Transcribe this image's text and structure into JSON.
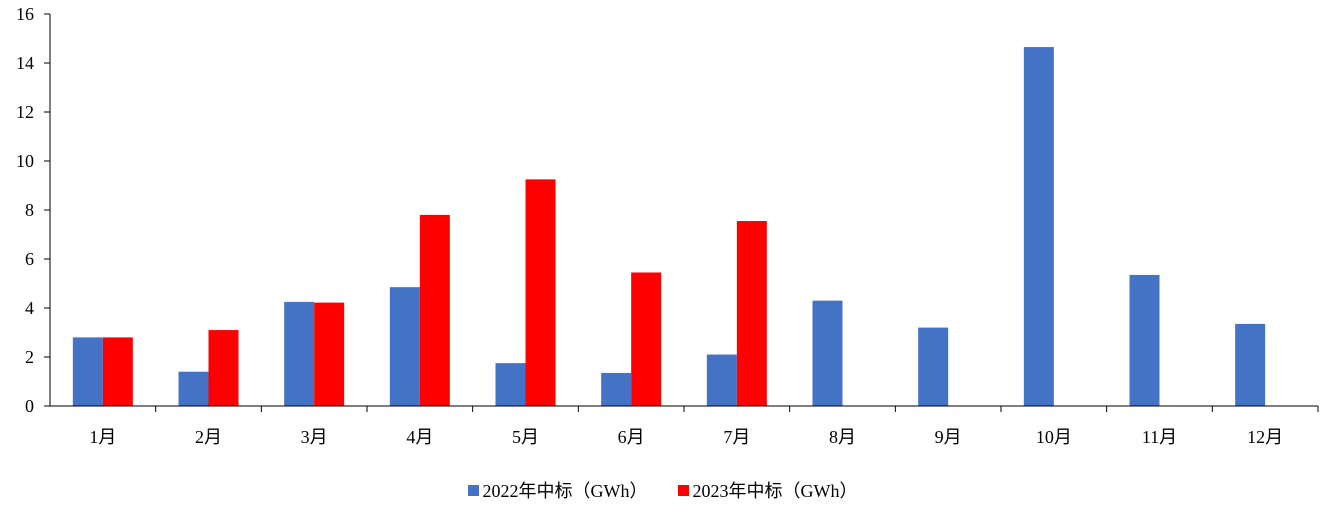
{
  "chart_data": {
    "type": "bar",
    "categories": [
      "1月",
      "2月",
      "3月",
      "4月",
      "5月",
      "6月",
      "7月",
      "8月",
      "9月",
      "10月",
      "11月",
      "12月"
    ],
    "series": [
      {
        "name": "2022年中标（GWh）",
        "color": "#4472c4",
        "values": [
          2.8,
          1.4,
          4.25,
          4.85,
          1.75,
          1.35,
          2.1,
          4.3,
          3.2,
          14.65,
          5.35,
          3.35
        ]
      },
      {
        "name": "2023年中标（GWh）",
        "color": "#ff0000",
        "values": [
          2.8,
          3.1,
          4.22,
          7.8,
          9.25,
          5.45,
          7.55,
          null,
          null,
          null,
          null,
          null
        ]
      }
    ],
    "yticks": [
      "0",
      "2",
      "4",
      "6",
      "8",
      "10",
      "12",
      "14",
      "16"
    ],
    "ylim": [
      0,
      16
    ],
    "xlabel": "",
    "ylabel": "",
    "grid": false,
    "legend_position": "bottom"
  }
}
